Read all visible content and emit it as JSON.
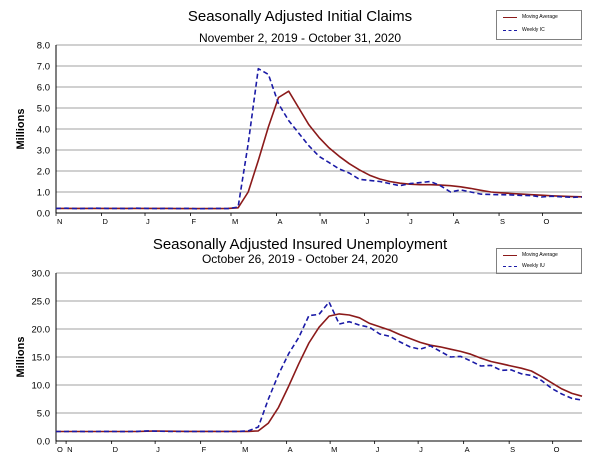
{
  "colors": {
    "moving_average": "#8b1a1a",
    "weekly": "#1a1aa6",
    "grid": "#808080"
  },
  "chart_data": [
    {
      "type": "line",
      "title": "Seasonally Adjusted Initial Claims",
      "subtitle": "November 2, 2019 - October 31, 2020",
      "ylabel": "Millions",
      "ylim": [
        0,
        8
      ],
      "yticks": [
        "0.0",
        "1.0",
        "2.0",
        "3.0",
        "4.0",
        "5.0",
        "6.0",
        "7.0",
        "8.0"
      ],
      "xlim": [
        0,
        52
      ],
      "month_ticks": [
        {
          "label": "N",
          "x": 0
        },
        {
          "label": "D",
          "x": 4.5
        },
        {
          "label": "J",
          "x": 8.8
        },
        {
          "label": "F",
          "x": 13.3
        },
        {
          "label": "M",
          "x": 17.3
        },
        {
          "label": "A",
          "x": 21.8
        },
        {
          "label": "M",
          "x": 26.1
        },
        {
          "label": "J",
          "x": 30.5
        },
        {
          "label": "J",
          "x": 34.8
        },
        {
          "label": "A",
          "x": 39.3
        },
        {
          "label": "S",
          "x": 43.8
        },
        {
          "label": "O",
          "x": 48.1
        }
      ],
      "legend": [
        "Moving Average",
        "Weekly IC"
      ],
      "legend_position": "top-right",
      "grid": "horizontal",
      "series": [
        {
          "name": "Moving Average",
          "style": "solid",
          "x": [
            0,
            1,
            2,
            3,
            4,
            5,
            6,
            7,
            8,
            9,
            10,
            11,
            12,
            13,
            14,
            15,
            16,
            17,
            18,
            19,
            20,
            21,
            22,
            23,
            24,
            25,
            26,
            27,
            28,
            29,
            30,
            31,
            32,
            33,
            34,
            35,
            36,
            37,
            38,
            39,
            40,
            41,
            42,
            43,
            44,
            45,
            46,
            47,
            48,
            49,
            50,
            51,
            52
          ],
          "values": [
            0.22,
            0.22,
            0.22,
            0.22,
            0.22,
            0.22,
            0.22,
            0.22,
            0.22,
            0.22,
            0.22,
            0.22,
            0.21,
            0.21,
            0.21,
            0.21,
            0.21,
            0.22,
            0.25,
            1.0,
            2.5,
            4.1,
            5.5,
            5.8,
            5.0,
            4.2,
            3.6,
            3.1,
            2.7,
            2.35,
            2.05,
            1.8,
            1.62,
            1.5,
            1.42,
            1.37,
            1.35,
            1.35,
            1.33,
            1.3,
            1.25,
            1.17,
            1.08,
            1.0,
            0.96,
            0.93,
            0.9,
            0.87,
            0.85,
            0.82,
            0.8,
            0.78,
            0.77
          ]
        },
        {
          "name": "Weekly IC",
          "style": "dashed",
          "x": [
            0,
            1,
            2,
            3,
            4,
            5,
            6,
            7,
            8,
            9,
            10,
            11,
            12,
            13,
            14,
            15,
            16,
            17,
            18,
            19,
            20,
            21,
            22,
            23,
            24,
            25,
            26,
            27,
            28,
            29,
            30,
            31,
            32,
            33,
            34,
            35,
            36,
            37,
            38,
            39,
            40,
            41,
            42,
            43,
            44,
            45,
            46,
            47,
            48,
            49,
            50,
            51,
            52
          ],
          "values": [
            0.22,
            0.23,
            0.21,
            0.22,
            0.23,
            0.22,
            0.22,
            0.21,
            0.23,
            0.22,
            0.21,
            0.22,
            0.21,
            0.22,
            0.2,
            0.21,
            0.22,
            0.21,
            0.28,
            3.3,
            6.87,
            6.6,
            5.2,
            4.4,
            3.8,
            3.2,
            2.7,
            2.4,
            2.1,
            1.9,
            1.6,
            1.55,
            1.5,
            1.4,
            1.3,
            1.4,
            1.45,
            1.5,
            1.3,
            1.0,
            1.1,
            1.0,
            0.9,
            0.88,
            0.87,
            0.86,
            0.84,
            0.83,
            0.76,
            0.8,
            0.77,
            0.75,
            0.76
          ]
        }
      ]
    },
    {
      "type": "line",
      "title": "Seasonally Adjusted Insured Unemployment",
      "subtitle": "October 26, 2019 - October 24, 2020",
      "ylabel": "Millions",
      "ylim": [
        0,
        30
      ],
      "yticks": [
        "0.0",
        "5.0",
        "10.0",
        "15.0",
        "20.0",
        "25.0",
        "30.0"
      ],
      "xlim": [
        0,
        52
      ],
      "month_ticks": [
        {
          "label": "O",
          "x": 0
        },
        {
          "label": "N",
          "x": 1
        },
        {
          "label": "D",
          "x": 5.5
        },
        {
          "label": "J",
          "x": 9.8
        },
        {
          "label": "F",
          "x": 14.3
        },
        {
          "label": "M",
          "x": 18.3
        },
        {
          "label": "A",
          "x": 22.8
        },
        {
          "label": "M",
          "x": 27.1
        },
        {
          "label": "J",
          "x": 31.5
        },
        {
          "label": "J",
          "x": 35.8
        },
        {
          "label": "A",
          "x": 40.3
        },
        {
          "label": "S",
          "x": 44.8
        },
        {
          "label": "O",
          "x": 49.1
        }
      ],
      "legend": [
        "Moving Average",
        "Weekly IU"
      ],
      "legend_position": "top-right",
      "grid": "horizontal",
      "series": [
        {
          "name": "Moving Average",
          "style": "solid",
          "x": [
            0,
            1,
            2,
            3,
            4,
            5,
            6,
            7,
            8,
            9,
            10,
            11,
            12,
            13,
            14,
            15,
            16,
            17,
            18,
            19,
            20,
            21,
            22,
            23,
            24,
            25,
            26,
            27,
            28,
            29,
            30,
            31,
            32,
            33,
            34,
            35,
            36,
            37,
            38,
            39,
            40,
            41,
            42,
            43,
            44,
            45,
            46,
            47,
            48,
            49,
            50,
            51,
            52
          ],
          "values": [
            1.7,
            1.7,
            1.7,
            1.7,
            1.7,
            1.7,
            1.7,
            1.7,
            1.7,
            1.75,
            1.78,
            1.75,
            1.73,
            1.72,
            1.72,
            1.72,
            1.72,
            1.72,
            1.72,
            1.72,
            1.8,
            3.2,
            6.0,
            9.8,
            13.8,
            17.5,
            20.3,
            22.3,
            22.7,
            22.5,
            22.0,
            21.0,
            20.4,
            19.8,
            19.0,
            18.3,
            17.6,
            17.1,
            16.8,
            16.4,
            16.0,
            15.5,
            14.8,
            14.2,
            13.8,
            13.4,
            13.0,
            12.5,
            11.5,
            10.4,
            9.3,
            8.5,
            8.0
          ]
        },
        {
          "name": "Weekly IU",
          "style": "dashed",
          "x": [
            0,
            1,
            2,
            3,
            4,
            5,
            6,
            7,
            8,
            9,
            10,
            11,
            12,
            13,
            14,
            15,
            16,
            17,
            18,
            19,
            20,
            21,
            22,
            23,
            24,
            25,
            26,
            27,
            28,
            29,
            30,
            31,
            32,
            33,
            34,
            35,
            36,
            37,
            38,
            39,
            40,
            41,
            42,
            43,
            44,
            45,
            46,
            47,
            48,
            49,
            50,
            51,
            52
          ],
          "values": [
            1.7,
            1.7,
            1.72,
            1.68,
            1.7,
            1.72,
            1.7,
            1.68,
            1.72,
            1.8,
            1.75,
            1.72,
            1.7,
            1.72,
            1.7,
            1.72,
            1.7,
            1.7,
            1.72,
            1.8,
            2.5,
            7.5,
            11.9,
            15.6,
            18.5,
            22.4,
            22.6,
            24.8,
            20.9,
            21.3,
            20.7,
            20.3,
            19.1,
            18.7,
            17.7,
            16.8,
            16.4,
            17.0,
            16.0,
            15.0,
            15.1,
            14.3,
            13.4,
            13.5,
            12.6,
            12.7,
            12.0,
            11.7,
            10.8,
            9.4,
            8.4,
            7.6,
            7.3
          ]
        }
      ]
    }
  ]
}
